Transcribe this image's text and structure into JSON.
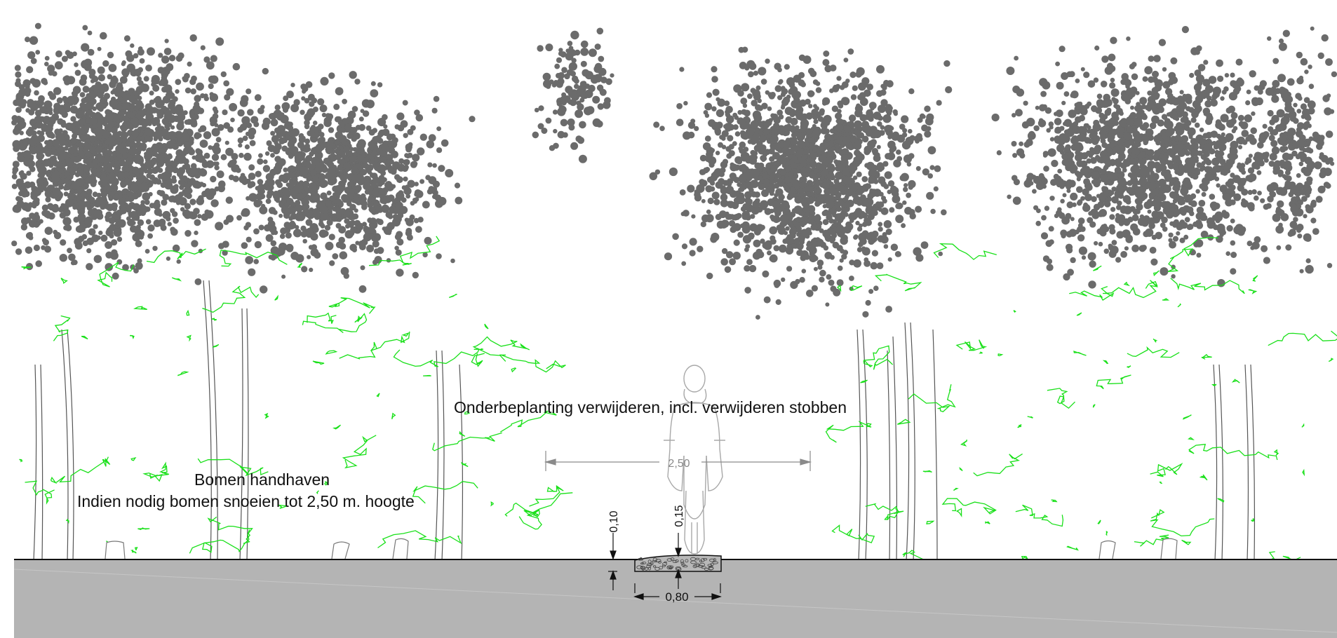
{
  "annotations": {
    "remove_understory": "Onderbeplanting verwijderen, incl. verwijderen stobben",
    "keep_trees": "Bomen handhaven",
    "prune_trees": "Indien nodig bomen snoeien tot 2,50 m. hoogte"
  },
  "dimensions": {
    "clearance_width": "2,50",
    "path_thickness_left": "0,10",
    "path_thickness_center": "0,15",
    "path_width": "0,80"
  },
  "colors": {
    "foliage_dots": "#6b6b6b",
    "understory": "#19e019",
    "ground": "#b4b4b4",
    "lines": "#111111"
  },
  "icons": {
    "cyclist": "cyclist-outline-icon",
    "stump": "tree-stump-icon"
  }
}
